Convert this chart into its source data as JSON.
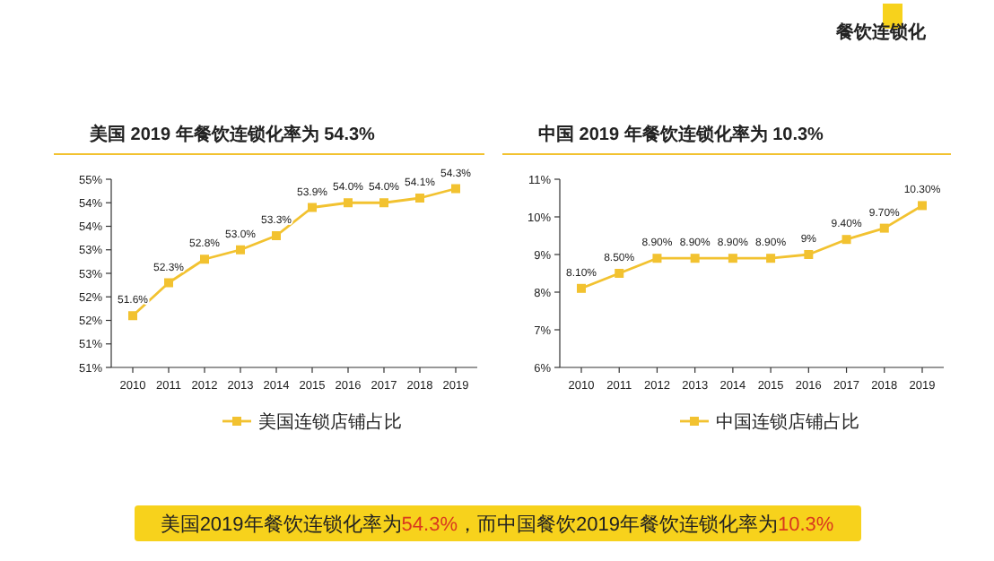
{
  "chart_data": [
    {
      "type": "line",
      "title": "美国 2019 年餐饮连锁化率为 54.3%",
      "categories": [
        "2010",
        "2011",
        "2012",
        "2013",
        "2014",
        "2015",
        "2016",
        "2017",
        "2018",
        "2019"
      ],
      "series": [
        {
          "name": "美国连锁店铺占比",
          "color": "#f2c230",
          "values": [
            51.6,
            52.3,
            52.8,
            53.0,
            53.3,
            53.9,
            54.0,
            54.0,
            54.1,
            54.3
          ],
          "value_labels": [
            "51.6%",
            "52.3%",
            "52.8%",
            "53.0%",
            "53.3%",
            "53.9%",
            "54.0%",
            "54.0%",
            "54.1%",
            "54.3%"
          ]
        }
      ],
      "ylim": [
        50.5,
        54.5
      ],
      "yticks": [
        {
          "value": 50.5,
          "label": "51%"
        },
        {
          "value": 51,
          "label": "51%"
        },
        {
          "value": 51.5,
          "label": "52%"
        },
        {
          "value": 52,
          "label": "52%"
        },
        {
          "value": 52.5,
          "label": "53%"
        },
        {
          "value": 53,
          "label": "53%"
        },
        {
          "value": 53.5,
          "label": "54%"
        },
        {
          "value": 54,
          "label": "54%"
        },
        {
          "value": 54.5,
          "label": "55%"
        }
      ],
      "marker": "square",
      "legend": "bottom",
      "grid": false
    },
    {
      "type": "line",
      "title": "中国 2019 年餐饮连锁化率为 10.3%",
      "categories": [
        "2010",
        "2011",
        "2012",
        "2013",
        "2014",
        "2015",
        "2016",
        "2017",
        "2018",
        "2019"
      ],
      "series": [
        {
          "name": "中国连锁店铺占比",
          "color": "#f2c230",
          "values": [
            8.1,
            8.5,
            8.9,
            8.9,
            8.9,
            8.9,
            9,
            9.4,
            9.7,
            10.3
          ],
          "value_labels": [
            "8.10%",
            "8.50%",
            "8.90%",
            "8.90%",
            "8.90%",
            "8.90%",
            "9%",
            "9.40%",
            "9.70%",
            "10.30%"
          ]
        }
      ],
      "ylim": [
        6,
        11
      ],
      "yticks": [
        {
          "value": 6,
          "label": "6%"
        },
        {
          "value": 7,
          "label": "7%"
        },
        {
          "value": 8,
          "label": "8%"
        },
        {
          "value": 9,
          "label": "9%"
        },
        {
          "value": 10,
          "label": "10%"
        },
        {
          "value": 11,
          "label": "11%"
        }
      ],
      "marker": "square",
      "legend": "bottom",
      "grid": false
    },
    {
      "type": "other",
      "annotations": [
        "餐饮连锁化",
        "美国2019年餐饮连锁化率为54.3%，而中国餐饮2019年餐饮连锁化率为10.3%"
      ]
    }
  ]
}
